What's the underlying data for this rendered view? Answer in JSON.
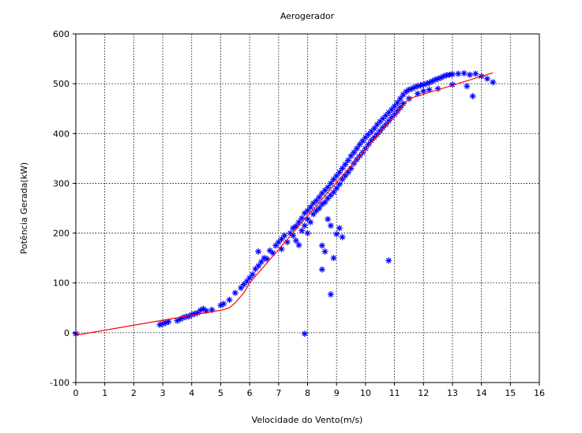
{
  "colors": {
    "marker": "#0000ff",
    "fit_line": "#ff0000",
    "grid": "#000000",
    "background": "#ffffff"
  },
  "chart_data": {
    "type": "scatter",
    "title": "Aerogerador",
    "xlabel": "Velocidade do Vento(m/s)",
    "ylabel": "Potência Gerada(kW)",
    "xlim": [
      0,
      16
    ],
    "ylim": [
      -100,
      600
    ],
    "xticks": [
      0,
      1,
      2,
      3,
      4,
      5,
      6,
      7,
      8,
      9,
      10,
      11,
      12,
      13,
      14,
      15,
      16
    ],
    "yticks": [
      -100,
      0,
      100,
      200,
      300,
      400,
      500,
      600
    ],
    "grid": true,
    "legend": "none",
    "series": [
      {
        "marker": "asterisk",
        "color": "#0000ff",
        "points": [
          [
            0.0,
            -2
          ],
          [
            2.9,
            16
          ],
          [
            3.0,
            18
          ],
          [
            3.1,
            20
          ],
          [
            3.2,
            22
          ],
          [
            3.5,
            24
          ],
          [
            3.6,
            27
          ],
          [
            3.7,
            30
          ],
          [
            3.8,
            32
          ],
          [
            3.9,
            33
          ],
          [
            4.0,
            36
          ],
          [
            4.1,
            38
          ],
          [
            4.2,
            40
          ],
          [
            4.3,
            45
          ],
          [
            4.4,
            48
          ],
          [
            4.5,
            44
          ],
          [
            4.7,
            46
          ],
          [
            5.0,
            55
          ],
          [
            5.1,
            58
          ],
          [
            5.3,
            66
          ],
          [
            5.5,
            80
          ],
          [
            5.7,
            90
          ],
          [
            5.8,
            97
          ],
          [
            5.9,
            103
          ],
          [
            6.0,
            110
          ],
          [
            6.1,
            117
          ],
          [
            6.2,
            128
          ],
          [
            6.3,
            134
          ],
          [
            6.3,
            163
          ],
          [
            6.4,
            142
          ],
          [
            6.5,
            150
          ],
          [
            6.6,
            148
          ],
          [
            6.7,
            165
          ],
          [
            6.8,
            160
          ],
          [
            6.9,
            175
          ],
          [
            7.0,
            182
          ],
          [
            7.1,
            168
          ],
          [
            7.1,
            188
          ],
          [
            7.2,
            195
          ],
          [
            7.3,
            182
          ],
          [
            7.4,
            200
          ],
          [
            7.5,
            210
          ],
          [
            7.5,
            195
          ],
          [
            7.6,
            214
          ],
          [
            7.6,
            185
          ],
          [
            7.7,
            222
          ],
          [
            7.7,
            176
          ],
          [
            7.8,
            230
          ],
          [
            7.8,
            205
          ],
          [
            7.9,
            240
          ],
          [
            7.9,
            215
          ],
          [
            8.0,
            245
          ],
          [
            8.0,
            228
          ],
          [
            8.0,
            200
          ],
          [
            8.1,
            252
          ],
          [
            8.1,
            222
          ],
          [
            8.2,
            260
          ],
          [
            8.2,
            238
          ],
          [
            8.3,
            265
          ],
          [
            8.3,
            245
          ],
          [
            8.4,
            272
          ],
          [
            8.4,
            250
          ],
          [
            8.5,
            280
          ],
          [
            8.5,
            258
          ],
          [
            8.6,
            286
          ],
          [
            8.6,
            262
          ],
          [
            8.7,
            292
          ],
          [
            8.7,
            270
          ],
          [
            8.8,
            300
          ],
          [
            8.8,
            276
          ],
          [
            8.9,
            308
          ],
          [
            8.9,
            282
          ],
          [
            9.0,
            315
          ],
          [
            9.0,
            290
          ],
          [
            9.1,
            322
          ],
          [
            9.1,
            298
          ],
          [
            9.2,
            330
          ],
          [
            9.2,
            308
          ],
          [
            9.3,
            338
          ],
          [
            9.3,
            315
          ],
          [
            9.4,
            346
          ],
          [
            9.4,
            322
          ],
          [
            9.5,
            355
          ],
          [
            9.5,
            330
          ],
          [
            9.6,
            362
          ],
          [
            9.6,
            340
          ],
          [
            9.7,
            370
          ],
          [
            9.7,
            348
          ],
          [
            9.8,
            378
          ],
          [
            9.8,
            355
          ],
          [
            9.9,
            385
          ],
          [
            9.9,
            362
          ],
          [
            10.0,
            392
          ],
          [
            10.0,
            370
          ],
          [
            10.1,
            398
          ],
          [
            10.1,
            378
          ],
          [
            10.2,
            404
          ],
          [
            10.2,
            386
          ],
          [
            10.3,
            410
          ],
          [
            10.3,
            392
          ],
          [
            10.4,
            418
          ],
          [
            10.4,
            398
          ],
          [
            10.5,
            424
          ],
          [
            10.5,
            405
          ],
          [
            10.6,
            430
          ],
          [
            10.6,
            412
          ],
          [
            10.7,
            436
          ],
          [
            10.7,
            418
          ],
          [
            10.8,
            442
          ],
          [
            10.8,
            425
          ],
          [
            10.9,
            448
          ],
          [
            10.9,
            432
          ],
          [
            11.0,
            455
          ],
          [
            11.0,
            438
          ],
          [
            11.1,
            462
          ],
          [
            11.1,
            445
          ],
          [
            11.2,
            470
          ],
          [
            11.2,
            452
          ],
          [
            11.3,
            478
          ],
          [
            11.3,
            460
          ],
          [
            11.4,
            484
          ],
          [
            11.5,
            488
          ],
          [
            11.5,
            470
          ],
          [
            11.6,
            490
          ],
          [
            11.7,
            493
          ],
          [
            11.8,
            495
          ],
          [
            11.9,
            497
          ],
          [
            12.0,
            498
          ],
          [
            12.1,
            500
          ],
          [
            12.2,
            502
          ],
          [
            12.3,
            505
          ],
          [
            12.4,
            508
          ],
          [
            12.5,
            510
          ],
          [
            12.6,
            512
          ],
          [
            12.7,
            515
          ],
          [
            12.8,
            517
          ],
          [
            12.9,
            518
          ],
          [
            13.0,
            519
          ],
          [
            13.2,
            520
          ],
          [
            13.4,
            521
          ],
          [
            13.6,
            518
          ],
          [
            13.8,
            520
          ],
          [
            14.0,
            515
          ],
          [
            14.2,
            510
          ],
          [
            14.4,
            503
          ],
          [
            12.0,
            485
          ],
          [
            12.5,
            490
          ],
          [
            13.0,
            498
          ],
          [
            13.5,
            495
          ],
          [
            13.7,
            475
          ],
          [
            11.8,
            480
          ],
          [
            12.2,
            488
          ],
          [
            8.5,
            175
          ],
          [
            8.6,
            163
          ],
          [
            8.7,
            228
          ],
          [
            8.8,
            215
          ],
          [
            9.0,
            198
          ],
          [
            9.1,
            210
          ],
          [
            9.2,
            192
          ],
          [
            8.9,
            150
          ],
          [
            8.5,
            127
          ],
          [
            8.8,
            77
          ],
          [
            7.9,
            -2
          ],
          [
            10.8,
            145
          ]
        ]
      }
    ],
    "fit_line": [
      [
        0,
        -5
      ],
      [
        5,
        45
      ],
      [
        5.3,
        50
      ],
      [
        5.5,
        60
      ],
      [
        5.8,
        80
      ],
      [
        6.0,
        100
      ],
      [
        11.5,
        470
      ],
      [
        14.4,
        522
      ]
    ]
  }
}
